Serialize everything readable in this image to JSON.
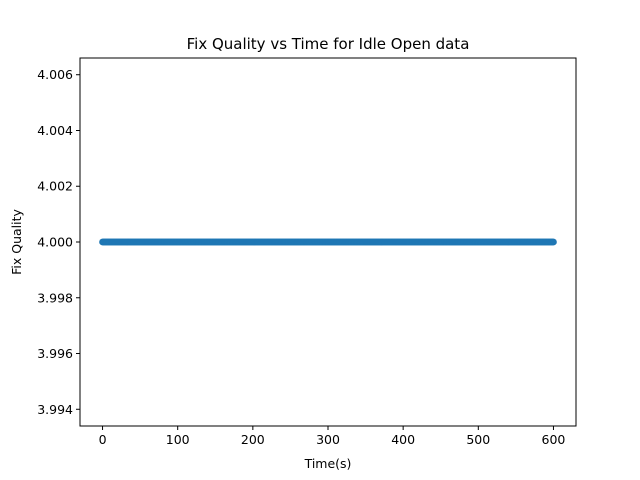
{
  "chart_data": {
    "type": "scatter",
    "title": "Fix Quality vs Time for Idle Open data",
    "xlabel": "Time(s)",
    "ylabel": "Fix Quality",
    "xlim": [
      -30,
      630
    ],
    "ylim": [
      3.9934,
      4.0066
    ],
    "xticks": [
      0,
      100,
      200,
      300,
      400,
      500,
      600
    ],
    "xtick_labels": [
      "0",
      "100",
      "200",
      "300",
      "400",
      "500",
      "600"
    ],
    "yticks": [
      3.994,
      3.996,
      3.998,
      4.0,
      4.002,
      4.004,
      4.006
    ],
    "ytick_labels": [
      "3.994",
      "3.996",
      "3.998",
      "4.000",
      "4.002",
      "4.004",
      "4.006"
    ],
    "grid": false,
    "legend": "none",
    "marker_color": "#1f77b4",
    "series": [
      {
        "x_range": [
          0,
          600
        ],
        "x_step": 1,
        "y_constant": 4.0
      }
    ]
  }
}
